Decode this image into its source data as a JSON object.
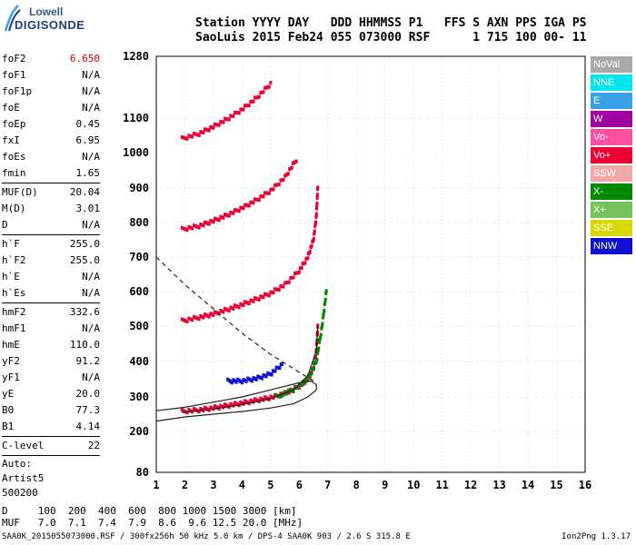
{
  "logo": {
    "line1": "Lowell",
    "line2": "DIGISONDE"
  },
  "header": {
    "line1": "Station YYYY DAY   DDD HHMMSS P1   FFS S AXN PPS IGA PS",
    "line2": "SaoLuis 2015 Feb24 055 073000 RSF      1 715 100 00- 11"
  },
  "params_group1": [
    {
      "label": "foF2",
      "value": "6.650",
      "red": true
    },
    {
      "label": "foF1",
      "value": "N/A"
    },
    {
      "label": "foF1p",
      "value": "N/A"
    },
    {
      "label": "foE",
      "value": "N/A"
    },
    {
      "label": "foEp",
      "value": "0.45"
    },
    {
      "label": "fxI",
      "value": "6.95"
    },
    {
      "label": "foEs",
      "value": "N/A"
    },
    {
      "label": "fmin",
      "value": "1.65"
    }
  ],
  "params_group2": [
    {
      "label": "MUF(D)",
      "value": "20.04"
    },
    {
      "label": "M(D)",
      "value": "3.01"
    },
    {
      "label": "D",
      "value": "N/A"
    }
  ],
  "params_group3": [
    {
      "label": "h`F",
      "value": "255.0"
    },
    {
      "label": "h`F2",
      "value": "255.0"
    },
    {
      "label": "h`E",
      "value": "N/A"
    },
    {
      "label": "h`Es",
      "value": "N/A"
    }
  ],
  "params_group4": [
    {
      "label": "hmF2",
      "value": "332.6"
    },
    {
      "label": "hmF1",
      "value": "N/A"
    },
    {
      "label": "hmE",
      "value": "110.0"
    },
    {
      "label": "yF2",
      "value": "91.2"
    },
    {
      "label": "yF1",
      "value": "N/A"
    },
    {
      "label": "yE",
      "value": "20.0"
    },
    {
      "label": "B0",
      "value": "77.3"
    },
    {
      "label": "B1",
      "value": "4.14"
    }
  ],
  "clevel": {
    "label": "C-level",
    "value": "22"
  },
  "autoscale": [
    "Auto:",
    "Artist5",
    "500200"
  ],
  "legend": [
    {
      "label": "NoVal",
      "color": "#a9a9a9"
    },
    {
      "label": "NNE",
      "color": "#00e5ee"
    },
    {
      "label": "E",
      "color": "#3aa0e8"
    },
    {
      "label": "W",
      "color": "#a000a0"
    },
    {
      "label": "Vo-",
      "color": "#ff4fa0"
    },
    {
      "label": "Vo+",
      "color": "#ee0033"
    },
    {
      "label": "SSW",
      "color": "#f0a8a8"
    },
    {
      "label": "X-",
      "color": "#008a00"
    },
    {
      "label": "X+",
      "color": "#77c25a"
    },
    {
      "label": "SSE",
      "color": "#d8d800"
    },
    {
      "label": "NNW",
      "color": "#1010d0"
    }
  ],
  "footer": {
    "line1": "D     100  200  400  600  800 1000 1500 3000 [km]",
    "line2": "MUF   7.0  7.1  7.4  7.9  8.6  9.6 12.5 20.0 [MHz]"
  },
  "bottom_line": "SAA0K_2015055073000.RSF / 300fx256h 50 kHz 5.0 km / DPS-4 SAA0K 903 / 2.6 S 315.8 E",
  "version": "Ion2Png 1.3.17",
  "chart_data": {
    "type": "scatter",
    "x_ticks": [
      "1",
      "2",
      "3",
      "4",
      "5",
      "6",
      "7",
      "8",
      "9",
      "10",
      "11",
      "12",
      "13",
      "14",
      "15",
      "16"
    ],
    "y_ticks": [
      "80",
      "200",
      "300",
      "400",
      "500",
      "600",
      "700",
      "800",
      "900",
      "1000",
      "1100",
      "1280"
    ],
    "xlim": [
      1,
      16
    ],
    "ylim": [
      80,
      1280
    ],
    "grid": true,
    "traces": [
      {
        "name": "O-trace 1st hop",
        "color": "#ee0033",
        "x": [
          1.9,
          2.5,
          3.0,
          3.5,
          4.0,
          4.5,
          5.0,
          5.5,
          6.0,
          6.3,
          6.5,
          6.6,
          6.65
        ],
        "y": [
          258,
          262,
          268,
          275,
          282,
          290,
          298,
          310,
          330,
          350,
          380,
          430,
          500
        ]
      },
      {
        "name": "O-trace 2nd hop",
        "color": "#ee0033",
        "x": [
          1.9,
          2.5,
          3.0,
          3.5,
          4.0,
          4.5,
          5.0,
          5.5,
          6.0,
          6.3,
          6.5,
          6.6,
          6.65
        ],
        "y": [
          515,
          525,
          535,
          548,
          562,
          578,
          595,
          620,
          660,
          700,
          750,
          820,
          900
        ]
      },
      {
        "name": "O-trace 3rd hop",
        "color": "#ee0033",
        "x": [
          1.9,
          2.5,
          3.0,
          3.5,
          4.0,
          4.5,
          5.0,
          5.5,
          5.9
        ],
        "y": [
          780,
          790,
          805,
          822,
          842,
          865,
          892,
          930,
          980
        ]
      },
      {
        "name": "O-trace 4th hop",
        "color": "#ee0033",
        "x": [
          1.9,
          2.5,
          3.0,
          3.5,
          4.0,
          4.5,
          5.0
        ],
        "y": [
          1040,
          1055,
          1075,
          1098,
          1125,
          1158,
          1200
        ]
      },
      {
        "name": "X-trace",
        "color": "#008a00",
        "x": [
          5.2,
          5.8,
          6.3,
          6.6,
          6.8,
          6.95
        ],
        "y": [
          300,
          320,
          350,
          400,
          500,
          600
        ]
      },
      {
        "name": "NNW spread",
        "color": "#1010d0",
        "x": [
          3.5,
          4.0,
          4.5,
          5.0,
          5.4
        ],
        "y": [
          345,
          345,
          352,
          365,
          392
        ]
      }
    ],
    "curves": [
      {
        "name": "true height profile",
        "style": "solid",
        "x": [
          1.0,
          2.0,
          3.0,
          4.0,
          5.0,
          5.8,
          6.3,
          6.6,
          6.6,
          6.4,
          6.0,
          5.0,
          4.0,
          3.0,
          2.0,
          1.0
        ],
        "y": [
          230,
          242,
          250,
          258,
          268,
          280,
          300,
          320,
          335,
          345,
          340,
          320,
          300,
          285,
          270,
          260
        ]
      },
      {
        "name": "virtual height model",
        "style": "solid",
        "x": [
          1.9,
          3.0,
          4.0,
          5.0,
          5.8,
          6.3,
          6.6,
          6.65
        ],
        "y": [
          255,
          265,
          278,
          295,
          320,
          360,
          430,
          500
        ]
      },
      {
        "name": "MUF curve",
        "style": "dashed",
        "x": [
          1.0,
          2.0,
          3.0,
          4.0,
          5.0,
          6.0,
          6.6
        ],
        "y": [
          700,
          620,
          550,
          480,
          420,
          370,
          340
        ]
      }
    ]
  }
}
